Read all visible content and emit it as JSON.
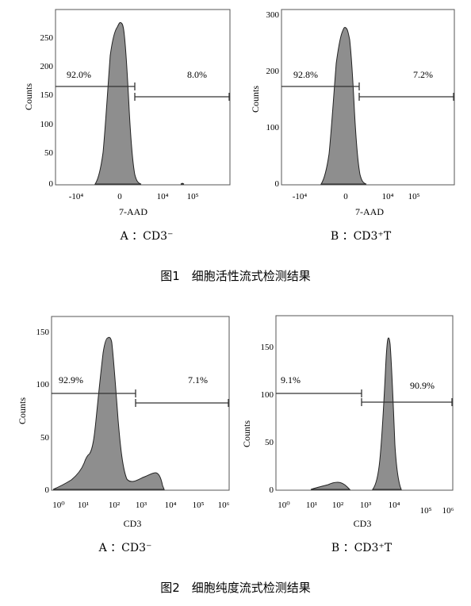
{
  "figures": [
    {
      "caption": "图1　细胞活性流式检测结果",
      "panels": [
        {
          "label": "A ：CD3⁻"
        },
        {
          "label": "B ：CD3⁺T"
        }
      ]
    },
    {
      "caption": "图2　细胞纯度流式检测结果",
      "panels": [
        {
          "label": "A ：CD3⁻"
        },
        {
          "label": "B ：CD3⁺T"
        }
      ]
    }
  ],
  "chart_data": [
    {
      "type": "area",
      "panel": "fig1-A",
      "xlabel": "7-AAD",
      "ylabel": "Counts",
      "x_ticks": [
        "-10⁴",
        "0",
        "10⁴",
        "10⁵"
      ],
      "y_ticks": [
        0,
        50,
        100,
        150,
        200,
        250
      ],
      "ylim": [
        0,
        290
      ],
      "gates": [
        {
          "label": "92.0%",
          "level": 163
        },
        {
          "label": "8.0%",
          "level": 150
        }
      ],
      "peak": 275
    },
    {
      "type": "area",
      "panel": "fig1-B",
      "xlabel": "7-AAD",
      "ylabel": "Counts",
      "x_ticks": [
        "-10⁴",
        "0",
        "10⁴",
        "10⁵"
      ],
      "y_ticks": [
        0,
        100,
        200,
        300
      ],
      "ylim": [
        0,
        300
      ],
      "gates": [
        {
          "label": "92.8%",
          "level": 168
        },
        {
          "label": "7.2%",
          "level": 150
        }
      ],
      "peak": 270
    },
    {
      "type": "area",
      "panel": "fig2-A",
      "xlabel": "CD3",
      "ylabel": "Counts",
      "x_ticks": [
        "10⁰",
        "10¹",
        "10²",
        "10³",
        "10⁴",
        "10⁵",
        "10⁶"
      ],
      "y_ticks": [
        0,
        50,
        100,
        150
      ],
      "ylim": [
        0,
        162
      ],
      "gates": [
        {
          "label": "92.9%",
          "level": 90
        },
        {
          "label": "7.1%",
          "level": 80
        }
      ],
      "peak": 142
    },
    {
      "type": "area",
      "panel": "fig2-B",
      "xlabel": "CD3",
      "ylabel": "Counts",
      "x_ticks": [
        "10⁰",
        "10¹",
        "10²",
        "10³",
        "10⁴",
        "10⁵",
        "10⁶"
      ],
      "y_ticks": [
        0,
        50,
        100,
        150
      ],
      "ylim": [
        0,
        168
      ],
      "gates": [
        {
          "label": "9.1%",
          "level": 101
        },
        {
          "label": "90.9%",
          "level": 90
        }
      ],
      "peak": 160
    }
  ]
}
